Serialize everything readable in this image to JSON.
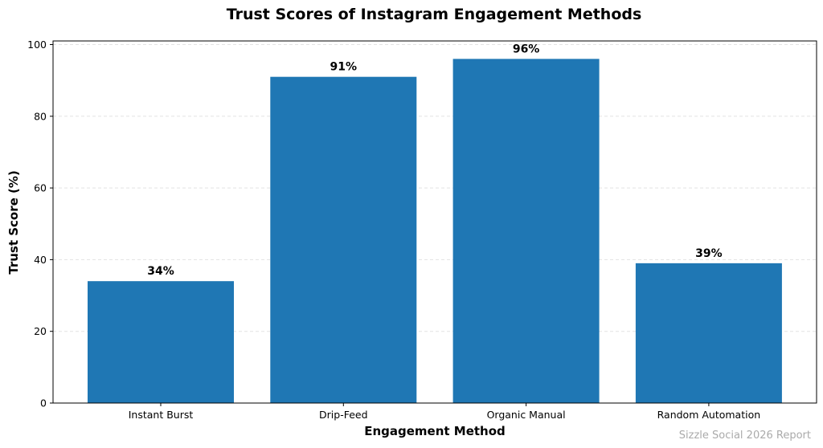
{
  "chart_data": {
    "type": "bar",
    "title": "Trust Scores of Instagram Engagement Methods",
    "xlabel": "Engagement Method",
    "ylabel": "Trust Score (%)",
    "categories": [
      "Instant Burst",
      "Drip-Feed",
      "Organic Manual",
      "Random Automation"
    ],
    "values": [
      34,
      91,
      96,
      39
    ],
    "data_labels": [
      "34%",
      "91%",
      "96%",
      "39%"
    ],
    "ylim": [
      0,
      100
    ],
    "yticks": [
      0,
      20,
      40,
      60,
      80,
      100
    ],
    "grid": "horizontal dashed",
    "bar_color": "#1f77b4"
  },
  "footer": {
    "watermark": "Sizzle Social 2026 Report"
  }
}
